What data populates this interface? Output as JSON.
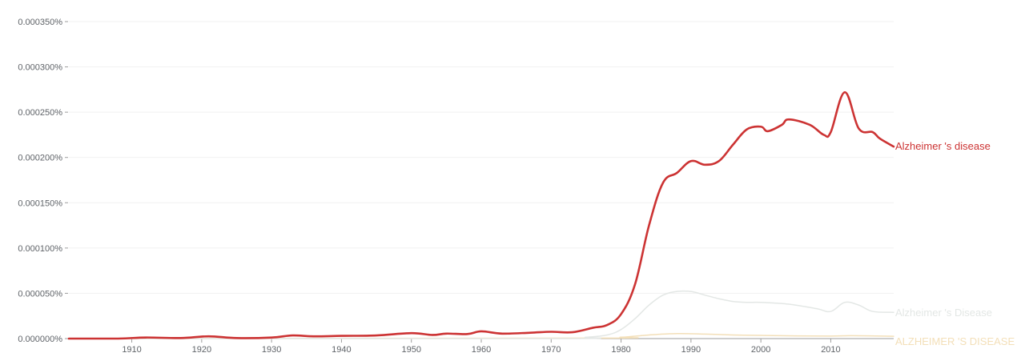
{
  "chart_data": {
    "type": "line",
    "title": "",
    "xlabel": "",
    "ylabel": "",
    "xlim": [
      1901,
      2019
    ],
    "ylim": [
      0,
      0.00035
    ],
    "grid": true,
    "legend_placement": "right-inline",
    "y_ticks": [
      {
        "value": 0.0,
        "label": "0.000000%"
      },
      {
        "value": 5e-05,
        "label": "0.000050%"
      },
      {
        "value": 0.0001,
        "label": "0.000100%"
      },
      {
        "value": 0.00015,
        "label": "0.000150%"
      },
      {
        "value": 0.0002,
        "label": "0.000200%"
      },
      {
        "value": 0.00025,
        "label": "0.000250%"
      },
      {
        "value": 0.0003,
        "label": "0.000300%"
      },
      {
        "value": 0.00035,
        "label": "0.000350%"
      }
    ],
    "x_ticks": [
      {
        "value": 1910,
        "label": "1910"
      },
      {
        "value": 1920,
        "label": "1920"
      },
      {
        "value": 1930,
        "label": "1930"
      },
      {
        "value": 1940,
        "label": "1940"
      },
      {
        "value": 1950,
        "label": "1950"
      },
      {
        "value": 1960,
        "label": "1960"
      },
      {
        "value": 1970,
        "label": "1970"
      },
      {
        "value": 1980,
        "label": "1980"
      },
      {
        "value": 1990,
        "label": "1990"
      },
      {
        "value": 2000,
        "label": "2000"
      },
      {
        "value": 2010,
        "label": "2010"
      }
    ],
    "series": [
      {
        "name": "ALZHEIMER 'S DISEASE",
        "color": "#f3dfb8",
        "stroke_width": 1.5,
        "points": [
          [
            1901,
            0.0
          ],
          [
            1975,
            5e-07
          ],
          [
            1980,
            1.5e-06
          ],
          [
            1984,
            4e-06
          ],
          [
            1988,
            5.5e-06
          ],
          [
            1992,
            5e-06
          ],
          [
            1996,
            4e-06
          ],
          [
            2000,
            3.5e-06
          ],
          [
            2005,
            3e-06
          ],
          [
            2010,
            2.8e-06
          ],
          [
            2013,
            3.2e-06
          ],
          [
            2019,
            2.5e-06
          ]
        ]
      },
      {
        "name": "Alzheimer 's Disease",
        "color": "#e3e7e5",
        "stroke_width": 1.5,
        "points": [
          [
            1901,
            0.0
          ],
          [
            1970,
            0.0
          ],
          [
            1975,
            1.5e-06
          ],
          [
            1978,
            4e-06
          ],
          [
            1980,
            1e-05
          ],
          [
            1982,
            2.2e-05
          ],
          [
            1984,
            3.7e-05
          ],
          [
            1986,
            4.8e-05
          ],
          [
            1988,
            5.2e-05
          ],
          [
            1990,
            5.2e-05
          ],
          [
            1992,
            4.8e-05
          ],
          [
            1994,
            4.4e-05
          ],
          [
            1996,
            4.1e-05
          ],
          [
            1998,
            4e-05
          ],
          [
            2000,
            4e-05
          ],
          [
            2004,
            3.8e-05
          ],
          [
            2008,
            3.3e-05
          ],
          [
            2010,
            3e-05
          ],
          [
            2012,
            4e-05
          ],
          [
            2014,
            3.7e-05
          ],
          [
            2016,
            3e-05
          ],
          [
            2019,
            2.9e-05
          ]
        ]
      },
      {
        "name": "Alzheimer 's disease",
        "color": "#cc3333",
        "stroke_width": 2.6,
        "points": [
          [
            1901,
            0.0
          ],
          [
            1908,
            0.0
          ],
          [
            1912,
            1.2e-06
          ],
          [
            1917,
            6e-07
          ],
          [
            1921,
            2.5e-06
          ],
          [
            1925,
            6e-07
          ],
          [
            1930,
            1.2e-06
          ],
          [
            1933,
            3.5e-06
          ],
          [
            1936,
            2.5e-06
          ],
          [
            1940,
            3e-06
          ],
          [
            1945,
            3.5e-06
          ],
          [
            1950,
            6e-06
          ],
          [
            1953,
            4e-06
          ],
          [
            1955,
            5.5e-06
          ],
          [
            1958,
            5e-06
          ],
          [
            1960,
            8e-06
          ],
          [
            1963,
            5.5e-06
          ],
          [
            1967,
            6.5e-06
          ],
          [
            1970,
            7.5e-06
          ],
          [
            1973,
            7e-06
          ],
          [
            1976,
            1.2e-05
          ],
          [
            1978,
            1.5e-05
          ],
          [
            1980,
            2.7e-05
          ],
          [
            1982,
            6e-05
          ],
          [
            1984,
            0.000125
          ],
          [
            1986,
            0.000172
          ],
          [
            1988,
            0.000183
          ],
          [
            1990,
            0.000196
          ],
          [
            1992,
            0.000192
          ],
          [
            1994,
            0.000196
          ],
          [
            1996,
            0.000214
          ],
          [
            1998,
            0.000231
          ],
          [
            2000,
            0.000234
          ],
          [
            2001,
            0.000229
          ],
          [
            2003,
            0.000236
          ],
          [
            2004,
            0.000242
          ],
          [
            2007,
            0.000236
          ],
          [
            2009,
            0.000225
          ],
          [
            2010,
            0.000228
          ],
          [
            2012,
            0.000272
          ],
          [
            2014,
            0.000232
          ],
          [
            2016,
            0.000228
          ],
          [
            2017,
            0.000221
          ],
          [
            2019,
            0.000212
          ]
        ]
      }
    ]
  }
}
